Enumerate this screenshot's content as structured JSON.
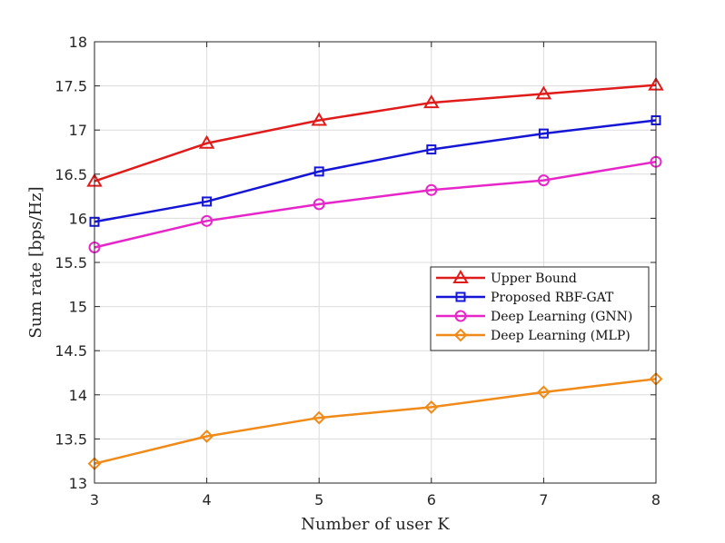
{
  "chart_data": {
    "type": "line",
    "xlabel": "Number of user K",
    "ylabel": "Sum rate [bps/Hz]",
    "x": [
      3,
      4,
      5,
      6,
      7,
      8
    ],
    "xlim": [
      3,
      8
    ],
    "ylim": [
      13,
      18
    ],
    "xticks": [
      3,
      4,
      5,
      6,
      7,
      8
    ],
    "yticks": [
      13,
      13.5,
      14,
      14.5,
      15,
      15.5,
      16,
      16.5,
      17,
      17.5,
      18
    ],
    "grid": true,
    "legend_position": "right",
    "series": [
      {
        "name": "Upper Bound",
        "marker": "triangle",
        "color": "#e01b1b",
        "values": [
          16.42,
          16.85,
          17.11,
          17.31,
          17.41,
          17.51
        ]
      },
      {
        "name": "Proposed RBF-GAT",
        "marker": "square",
        "color": "#1515d6",
        "values": [
          15.96,
          16.19,
          16.53,
          16.78,
          16.96,
          17.11
        ]
      },
      {
        "name": "Deep Learning (GNN)",
        "marker": "circle",
        "color": "#e626c8",
        "values": [
          15.67,
          15.97,
          16.16,
          16.32,
          16.43,
          16.64
        ]
      },
      {
        "name": "Deep Learning (MLP)",
        "marker": "diamond",
        "color": "#f08a18",
        "values": [
          13.22,
          13.53,
          13.74,
          13.86,
          14.03,
          14.18
        ]
      }
    ]
  }
}
